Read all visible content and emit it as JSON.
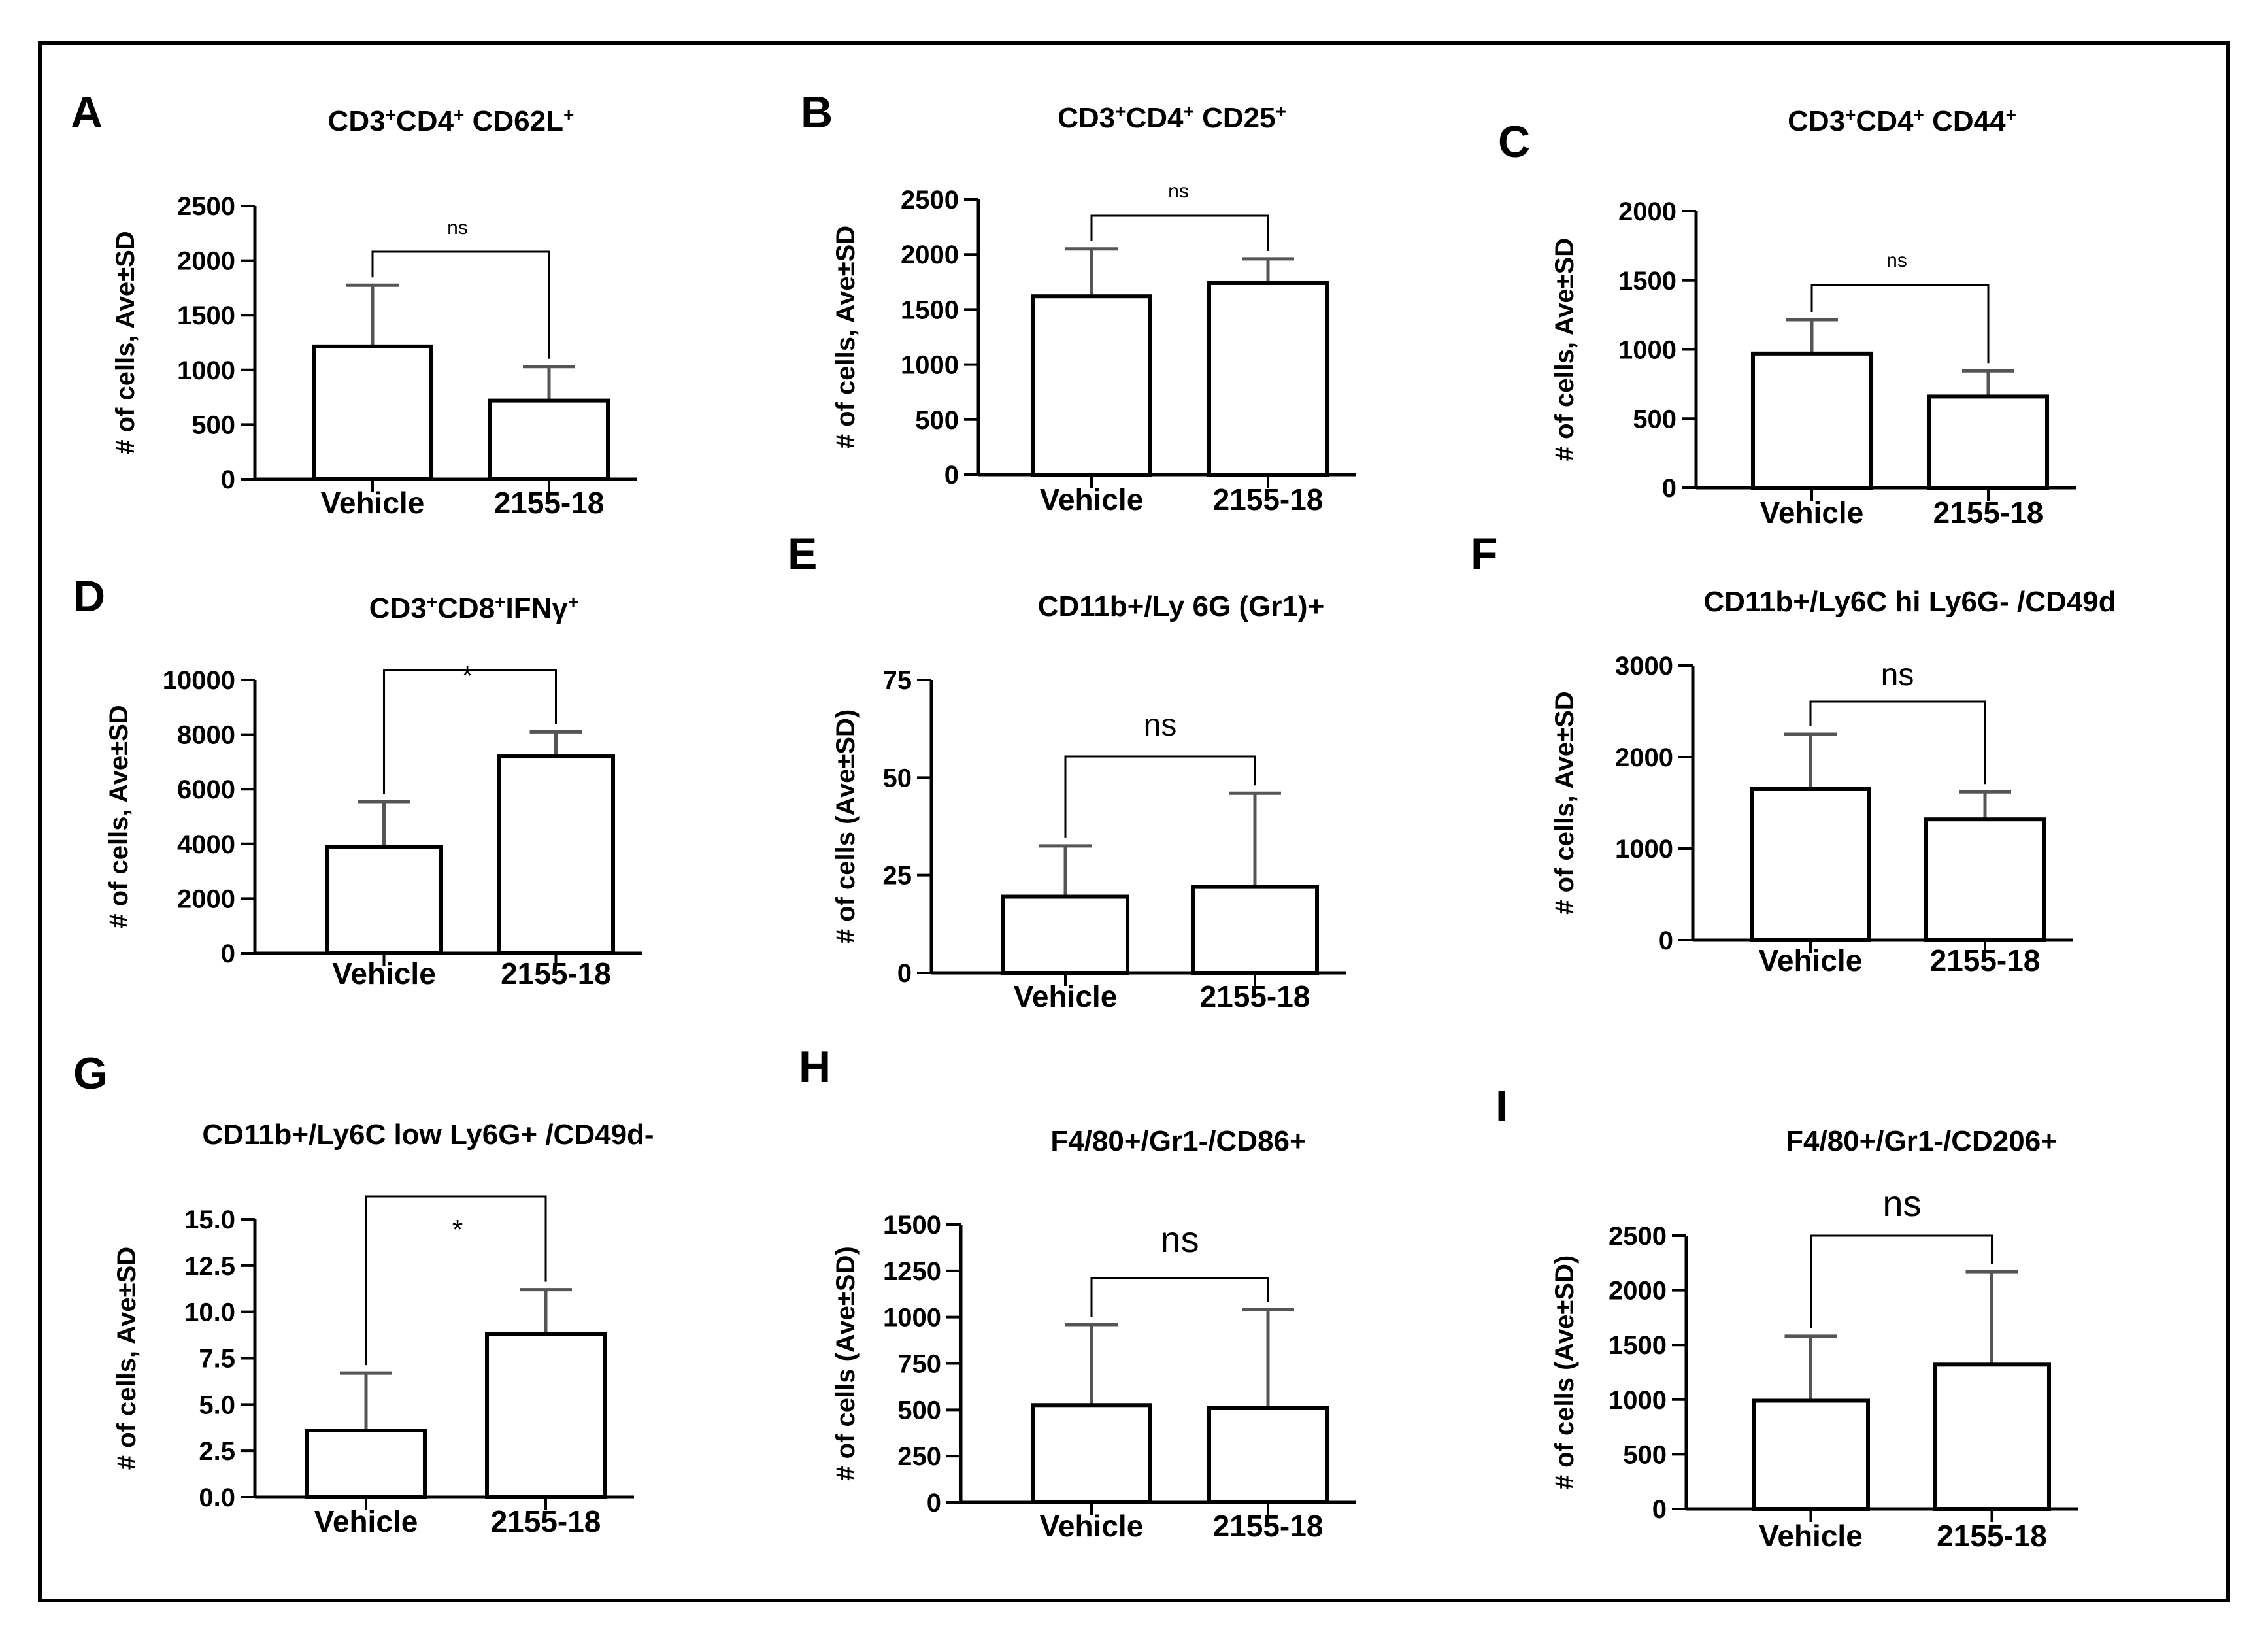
{
  "figure": {
    "frame_color": "#000000"
  },
  "chart_data": [
    {
      "panel": "A",
      "type": "bar",
      "title_html": "CD3<tspan baseline-shift='super' font-size='28'>+</tspan>CD4<tspan baseline-shift='super' font-size='28'>+</tspan> CD62L<tspan baseline-shift='super' font-size='28'>+</tspan>",
      "ylabel": "# of cells, Ave±SD",
      "categories": [
        "Vehicle",
        "2155-18"
      ],
      "values": [
        1215,
        720
      ],
      "errors": [
        560,
        310
      ],
      "ylim": [
        0,
        2500
      ],
      "yticks": [
        "0",
        "500",
        "1000",
        "1500",
        "2000",
        "2500"
      ],
      "significance": "ns"
    },
    {
      "panel": "B",
      "type": "bar",
      "title_html": "CD3<tspan baseline-shift='super' font-size='28'>+</tspan>CD4<tspan baseline-shift='super' font-size='28'>+</tspan> CD25<tspan baseline-shift='super' font-size='28'>+</tspan>",
      "ylabel": "# of cells, Ave±SD",
      "categories": [
        "Vehicle",
        "2155-18"
      ],
      "values": [
        1620,
        1740
      ],
      "errors": [
        430,
        220
      ],
      "ylim": [
        0,
        2500
      ],
      "yticks": [
        "0",
        "500",
        "1000",
        "1500",
        "2000",
        "2500"
      ],
      "significance": "ns"
    },
    {
      "panel": "C",
      "type": "bar",
      "title_html": "CD3<tspan baseline-shift='super' font-size='28'>+</tspan>CD4<tspan baseline-shift='super' font-size='28'>+</tspan> CD44<tspan baseline-shift='super' font-size='28'>+</tspan>",
      "ylabel": "# of cells, Ave±SD",
      "categories": [
        "Vehicle",
        "2155-18"
      ],
      "values": [
        970,
        660
      ],
      "errors": [
        245,
        185
      ],
      "ylim": [
        0,
        2000
      ],
      "yticks": [
        "0",
        "500",
        "1000",
        "1500",
        "2000"
      ],
      "significance": "ns"
    },
    {
      "panel": "D",
      "type": "bar",
      "title_html": "CD3<tspan baseline-shift='super' font-size='28'>+</tspan>CD8<tspan baseline-shift='super' font-size='28'>+</tspan>IFNγ<tspan baseline-shift='super' font-size='28'>+</tspan>",
      "ylabel": "# of cells, Ave±SD",
      "categories": [
        "Vehicle",
        "2155-18"
      ],
      "values": [
        3900,
        7200
      ],
      "errors": [
        1650,
        900
      ],
      "ylim": [
        0,
        10000
      ],
      "yticks": [
        "0",
        "2000",
        "4000",
        "6000",
        "8000",
        "10000"
      ],
      "significance": "*"
    },
    {
      "panel": "E",
      "type": "bar",
      "title_html": "CD11b+/Ly 6G (Gr1)+",
      "ylabel": "# of cells (Ave±SD)",
      "categories": [
        "Vehicle",
        "2155-18"
      ],
      "values": [
        19.5,
        22
      ],
      "errors": [
        13,
        24
      ],
      "ylim": [
        0,
        75
      ],
      "yticks": [
        "0",
        "25",
        "50",
        "75"
      ],
      "significance": "ns"
    },
    {
      "panel": "F",
      "type": "bar",
      "title_html": "CD11b+/Ly6C hi Ly6G- /CD49d",
      "ylabel": "# of cells, Ave±SD",
      "categories": [
        "Vehicle",
        "2155-18"
      ],
      "values": [
        1650,
        1320
      ],
      "errors": [
        600,
        300
      ],
      "ylim": [
        0,
        3000
      ],
      "yticks": [
        "0",
        "1000",
        "2000",
        "3000"
      ],
      "significance": "ns"
    },
    {
      "panel": "G",
      "type": "bar",
      "title_html": "CD11b+/Ly6C low Ly6G+ /CD49d-",
      "ylabel": "# of cells, Ave±SD",
      "categories": [
        "Vehicle",
        "2155-18"
      ],
      "values": [
        3.6,
        8.8
      ],
      "errors": [
        3.1,
        2.4
      ],
      "ylim": [
        0,
        15
      ],
      "yticks": [
        "0.0",
        "2.5",
        "5.0",
        "7.5",
        "10.0",
        "12.5",
        "15.0"
      ],
      "significance": "*"
    },
    {
      "panel": "H",
      "type": "bar",
      "title_html": "F4/80+/Gr1-/CD86+",
      "ylabel": "# of cells (Ave±SD)",
      "categories": [
        "Vehicle",
        "2155-18"
      ],
      "values": [
        525,
        510
      ],
      "errors": [
        435,
        530
      ],
      "ylim": [
        0,
        1500
      ],
      "yticks": [
        "0",
        "250",
        "500",
        "750",
        "1000",
        "1250",
        "1500"
      ],
      "significance": "ns"
    },
    {
      "panel": "I",
      "type": "bar",
      "title_html": "F4/80+/Gr1-/CD206+",
      "ylabel": "# of cells (Ave±SD)",
      "categories": [
        "Vehicle",
        "2155-18"
      ],
      "values": [
        990,
        1320
      ],
      "errors": [
        590,
        850
      ],
      "ylim": [
        0,
        2500
      ],
      "yticks": [
        "0",
        "500",
        "1000",
        "1500",
        "2000",
        "2500"
      ],
      "significance": "ns"
    }
  ]
}
